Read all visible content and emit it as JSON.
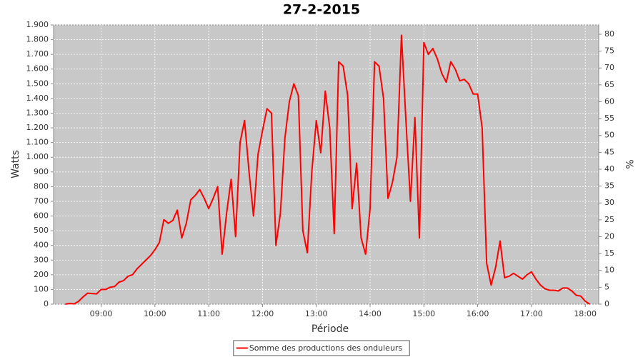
{
  "chart_data": {
    "type": "line",
    "title": "27-2-2015",
    "x_label": "Période",
    "y_label": "Watts",
    "y2_label": "%",
    "x": [
      "08:20",
      "08:25",
      "08:30",
      "08:35",
      "08:40",
      "08:45",
      "08:50",
      "08:55",
      "09:00",
      "09:05",
      "09:10",
      "09:15",
      "09:20",
      "09:25",
      "09:30",
      "09:35",
      "09:40",
      "09:45",
      "09:50",
      "09:55",
      "10:00",
      "10:05",
      "10:10",
      "10:15",
      "10:20",
      "10:25",
      "10:30",
      "10:35",
      "10:40",
      "10:45",
      "10:50",
      "10:55",
      "11:00",
      "11:05",
      "11:10",
      "11:15",
      "11:20",
      "11:25",
      "11:30",
      "11:35",
      "11:40",
      "11:45",
      "11:50",
      "11:55",
      "12:00",
      "12:05",
      "12:10",
      "12:15",
      "12:20",
      "12:25",
      "12:30",
      "12:35",
      "12:40",
      "12:45",
      "12:50",
      "12:55",
      "13:00",
      "13:05",
      "13:10",
      "13:15",
      "13:20",
      "13:25",
      "13:30",
      "13:35",
      "13:40",
      "13:45",
      "13:50",
      "13:55",
      "14:00",
      "14:05",
      "14:10",
      "14:15",
      "14:20",
      "14:25",
      "14:30",
      "14:35",
      "14:40",
      "14:45",
      "14:50",
      "14:55",
      "15:00",
      "15:05",
      "15:10",
      "15:15",
      "15:20",
      "15:25",
      "15:30",
      "15:35",
      "15:40",
      "15:45",
      "15:50",
      "15:55",
      "16:00",
      "16:05",
      "16:10",
      "16:15",
      "16:20",
      "16:25",
      "16:30",
      "16:35",
      "16:40",
      "16:45",
      "16:50",
      "16:55",
      "17:00",
      "17:05",
      "17:10",
      "17:15",
      "17:20",
      "17:25",
      "17:30",
      "17:35",
      "17:40",
      "17:45",
      "17:50",
      "17:55",
      "18:00",
      "18:05"
    ],
    "series": [
      {
        "name": "Somme des productions des onduleurs",
        "color": "#ff0000",
        "values": [
          0,
          5,
          2,
          20,
          50,
          75,
          72,
          70,
          100,
          100,
          115,
          120,
          150,
          160,
          190,
          200,
          240,
          270,
          300,
          330,
          370,
          420,
          575,
          550,
          570,
          640,
          450,
          550,
          710,
          740,
          780,
          720,
          650,
          720,
          800,
          340,
          620,
          850,
          460,
          1100,
          1250,
          900,
          600,
          1020,
          1180,
          1330,
          1300,
          400,
          620,
          1130,
          1380,
          1500,
          1420,
          500,
          350,
          900,
          1250,
          1030,
          1450,
          1200,
          480,
          1650,
          1620,
          1420,
          650,
          960,
          450,
          340,
          650,
          1650,
          1620,
          1400,
          720,
          830,
          1000,
          1830,
          1250,
          700,
          1270,
          450,
          1780,
          1700,
          1740,
          1670,
          1570,
          1510,
          1650,
          1600,
          1520,
          1530,
          1500,
          1430,
          1430,
          1200,
          280,
          130,
          250,
          430,
          180,
          190,
          210,
          190,
          170,
          200,
          220,
          170,
          130,
          105,
          95,
          95,
          90,
          110,
          110,
          90,
          60,
          55,
          20,
          0
        ]
      }
    ],
    "xlim": [
      "08:07",
      "18:15"
    ],
    "xticks": [
      "09:00",
      "10:00",
      "11:00",
      "12:00",
      "13:00",
      "14:00",
      "15:00",
      "16:00",
      "17:00",
      "18:00"
    ],
    "ylim": [
      0,
      1900
    ],
    "yticks": [
      0,
      100,
      200,
      300,
      400,
      500,
      600,
      700,
      800,
      900,
      {
        "value": 1000,
        "label": "1.000"
      },
      {
        "value": 1100,
        "label": "1.100"
      },
      {
        "value": 1200,
        "label": "1.200"
      },
      {
        "value": 1300,
        "label": "1.300"
      },
      {
        "value": 1400,
        "label": "1.400"
      },
      {
        "value": 1500,
        "label": "1.500"
      },
      {
        "value": 1600,
        "label": "1.600"
      },
      {
        "value": 1700,
        "label": "1.700"
      },
      {
        "value": 1800,
        "label": "1.800"
      },
      {
        "value": 1900,
        "label": "1.900"
      }
    ],
    "y2lim": [
      0,
      82.75
    ],
    "y2ticks": [
      0,
      5,
      10,
      15,
      20,
      25,
      30,
      35,
      40,
      45,
      50,
      55,
      60,
      65,
      70,
      75,
      80
    ],
    "grid": true,
    "legend": "bottom"
  }
}
